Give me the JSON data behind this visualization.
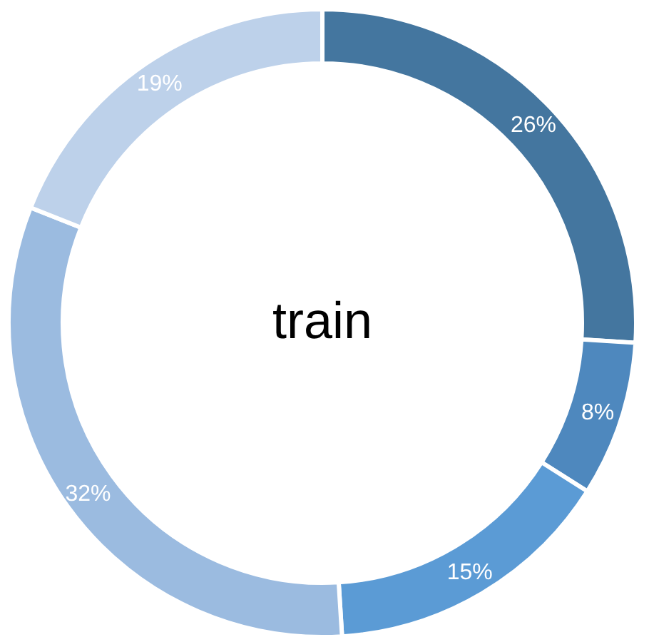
{
  "chart_data": {
    "type": "donut",
    "title": "train",
    "categories": [
      null,
      null,
      null,
      null,
      null
    ],
    "values": [
      26,
      8,
      15,
      32,
      19
    ],
    "colors": [
      "#44769f",
      "#4e88be",
      "#5b9bd5",
      "#9bbbe0",
      "#bdd1ea"
    ],
    "value_labels": [
      "26%",
      "8%",
      "15%",
      "32%",
      "19%"
    ],
    "legend": false
  }
}
